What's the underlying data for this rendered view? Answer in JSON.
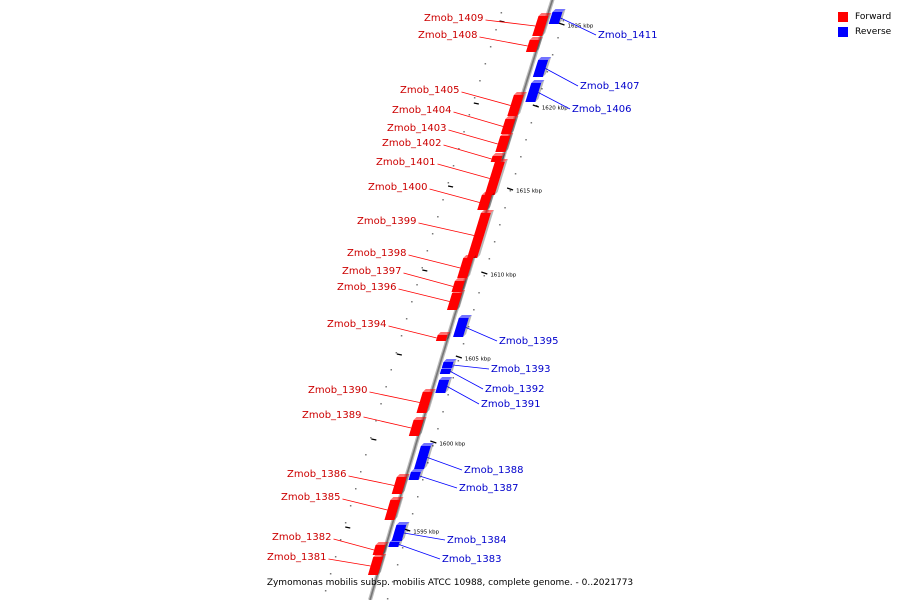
{
  "legend": [
    {
      "label": "Forward",
      "color": "#ff0000"
    },
    {
      "label": "Reverse",
      "color": "#0000ff"
    }
  ],
  "caption": "Zymomonas mobilis subsp. mobilis ATCC 10988, complete genome. - 0..2021773",
  "colors": {
    "forward": "#ff0000",
    "reverse": "#0000ff",
    "backbone": "#999999"
  },
  "kbp_labels": [
    "1595 kbp",
    "1600 kbp",
    "1605 kbp",
    "1610 kbp",
    "1615 kbp",
    "1620 kbp",
    "1625 kbp"
  ],
  "genes_forward": [
    {
      "name": "Zmob_1409"
    },
    {
      "name": "Zmob_1408"
    },
    {
      "name": "Zmob_1405"
    },
    {
      "name": "Zmob_1404"
    },
    {
      "name": "Zmob_1403"
    },
    {
      "name": "Zmob_1402"
    },
    {
      "name": "Zmob_1401"
    },
    {
      "name": "Zmob_1400"
    },
    {
      "name": "Zmob_1399"
    },
    {
      "name": "Zmob_1398"
    },
    {
      "name": "Zmob_1397"
    },
    {
      "name": "Zmob_1396"
    },
    {
      "name": "Zmob_1394"
    },
    {
      "name": "Zmob_1390"
    },
    {
      "name": "Zmob_1389"
    },
    {
      "name": "Zmob_1386"
    },
    {
      "name": "Zmob_1385"
    },
    {
      "name": "Zmob_1382"
    },
    {
      "name": "Zmob_1381"
    }
  ],
  "genes_reverse": [
    {
      "name": "Zmob_1411"
    },
    {
      "name": "Zmob_1407"
    },
    {
      "name": "Zmob_1406"
    },
    {
      "name": "Zmob_1395"
    },
    {
      "name": "Zmob_1393"
    },
    {
      "name": "Zmob_1392"
    },
    {
      "name": "Zmob_1391"
    },
    {
      "name": "Zmob_1388"
    },
    {
      "name": "Zmob_1387"
    },
    {
      "name": "Zmob_1384"
    },
    {
      "name": "Zmob_1383"
    }
  ]
}
